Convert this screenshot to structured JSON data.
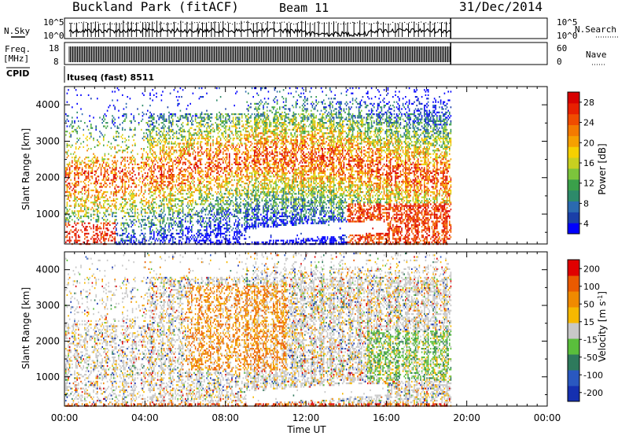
{
  "header": {
    "title": "Buckland Park (fitACF)",
    "beam": "Beam 11",
    "date": "31/Dec/2014"
  },
  "sky_panel": {
    "left_label": "N.Sky",
    "right_label": "N.Search",
    "left_ticks": [
      "10^5",
      "10^0"
    ],
    "right_ticks": [
      "10^5",
      "10^0"
    ]
  },
  "freq_panel": {
    "left_label_1": "Freq.",
    "left_label_2": "[MHz]",
    "right_label": "Nave",
    "left_ticks": [
      "18",
      "8"
    ],
    "right_ticks": [
      "60",
      "0"
    ]
  },
  "cpid": {
    "label": "CPID",
    "program": "ltuseq (fast) 8511"
  },
  "chart_data": [
    {
      "type": "heatmap",
      "title": "",
      "xlabel": "",
      "ylabel": "Slant Range [km]",
      "x_ticks": [
        "00:00",
        "04:00",
        "08:00",
        "12:00",
        "16:00",
        "20:00",
        "00:00"
      ],
      "y_ticks": [
        1000,
        2000,
        3000,
        4000
      ],
      "xlim_hours": [
        0,
        24
      ],
      "ylim_km": [
        180,
        4500
      ],
      "data_end_hour": 19.2,
      "colorbar": {
        "label": "Power [dB]",
        "ticks": [
          "28",
          "24",
          "20",
          "16",
          "12",
          "8",
          "4"
        ],
        "colors": [
          "#0000ff",
          "#1a3fa8",
          "#2b6ab0",
          "#2d8a6a",
          "#3aa04a",
          "#7cc43c",
          "#c8d020",
          "#f6d000",
          "#f6a000",
          "#f47a00",
          "#f04c00",
          "#e82000",
          "#d80000"
        ]
      }
    },
    {
      "type": "heatmap",
      "title": "",
      "xlabel": "Time UT",
      "ylabel": "Slant Range [km]",
      "x_ticks": [
        "00:00",
        "04:00",
        "08:00",
        "12:00",
        "16:00",
        "20:00",
        "00:00"
      ],
      "y_ticks": [
        1000,
        2000,
        3000,
        4000
      ],
      "xlim_hours": [
        0,
        24
      ],
      "ylim_km": [
        180,
        4500
      ],
      "data_end_hour": 19.2,
      "colorbar": {
        "label": "Velocity [m s^-1]",
        "ticks": [
          "200",
          "100",
          "50",
          "15",
          "-15",
          "-50",
          "-100",
          "-200"
        ],
        "colors": [
          "#1530b0",
          "#2a58c0",
          "#2e7a5c",
          "#5abe3c",
          "#c8c8c8",
          "#f6b800",
          "#f08a00",
          "#ea5a00",
          "#e00000"
        ]
      }
    }
  ]
}
